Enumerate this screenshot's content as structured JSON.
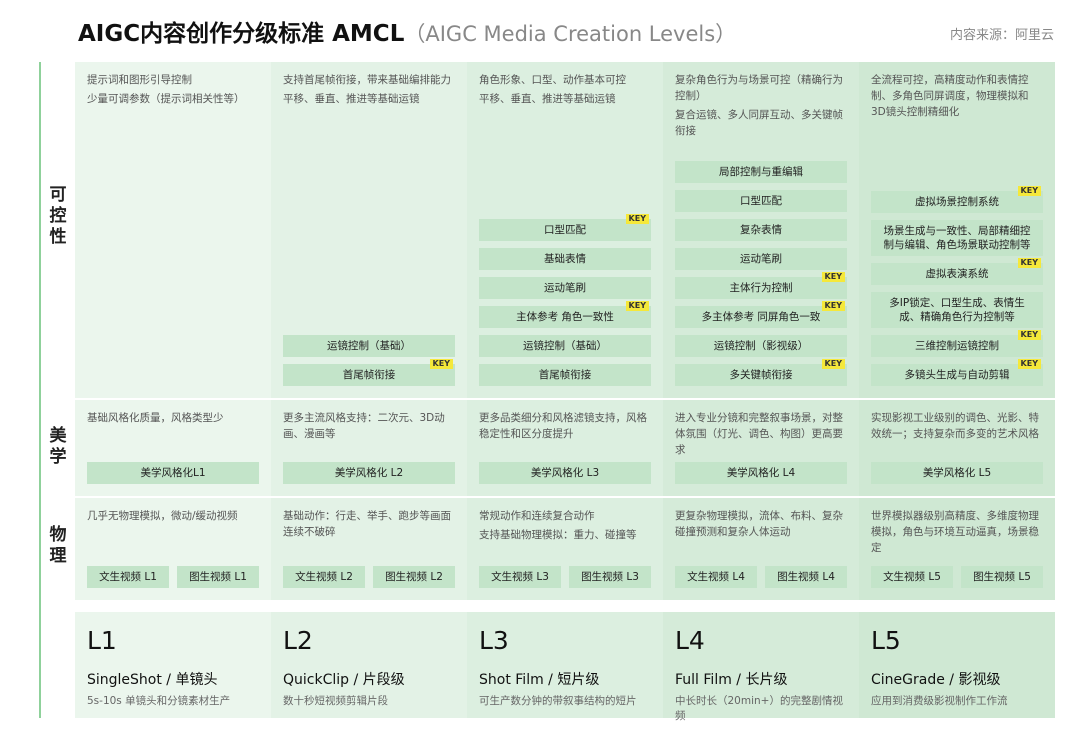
{
  "header": {
    "title": "AIGC内容创作分级标准 AMCL",
    "subtitle": "（AIGC Media Creation Levels）",
    "source": "内容来源：阿里云"
  },
  "row_labels": [
    "可控性",
    "美学",
    "物理"
  ],
  "key_label": "KEY",
  "levels": [
    {
      "control": {
        "description": [
          "提示词和图形引导控制",
          "少量可调参数（提示词相关性等）"
        ],
        "features": []
      },
      "aesthetics": {
        "description": [
          "基础风格化质量，风格类型少"
        ],
        "feature": "美学风格化L1"
      },
      "physics": {
        "description": [
          "几乎无物理模拟，微动/缓动视频"
        ],
        "features": [
          "文生视频 L1",
          "图生视频 L1"
        ]
      },
      "level": "L1",
      "name": "SingleShot / 单镜头",
      "summary": "5s-10s 单镜头和分镜素材生产"
    },
    {
      "control": {
        "description": [
          "支持首尾帧衔接，带来基础编排能力",
          "平移、垂直、推进等基础运镜"
        ],
        "features": [
          {
            "label": "运镜控制（基础）"
          },
          {
            "label": "首尾帧衔接",
            "key": true
          }
        ]
      },
      "aesthetics": {
        "description": [
          "更多主流风格支持：二次元、3D动画、漫画等"
        ],
        "feature": "美学风格化 L2"
      },
      "physics": {
        "description": [
          "基础动作：行走、举手、跑步等画面连续不破碎"
        ],
        "features": [
          "文生视频 L2",
          "图生视频 L2"
        ]
      },
      "level": "L2",
      "name": "QuickClip / 片段级",
      "summary": "数十秒短视频剪辑片段"
    },
    {
      "control": {
        "description": [
          "角色形象、口型、动作基本可控",
          "平移、垂直、推进等基础运镜"
        ],
        "features": [
          {
            "label": "口型匹配",
            "key": true
          },
          {
            "label": "基础表情"
          },
          {
            "label": "运动笔刷"
          },
          {
            "label": "主体参考 角色一致性",
            "key": true
          },
          {
            "label": "运镜控制（基础）"
          },
          {
            "label": "首尾帧衔接"
          }
        ]
      },
      "aesthetics": {
        "description": [
          "更多品类细分和风格滤镜支持，风格稳定性和区分度提升"
        ],
        "feature": "美学风格化 L3"
      },
      "physics": {
        "description": [
          "常规动作和连续复合动作",
          "支持基础物理模拟：重力、碰撞等"
        ],
        "features": [
          "文生视频 L3",
          "图生视频 L3"
        ]
      },
      "level": "L3",
      "name": "Shot Film / 短片级",
      "summary": "可生产数分钟的带叙事结构的短片"
    },
    {
      "control": {
        "description": [
          "复杂角色行为与场景可控（精确行为控制）",
          "复合运镜、多人同屏互动、多关键帧衔接"
        ],
        "features": [
          {
            "label": "局部控制与重编辑"
          },
          {
            "label": "口型匹配"
          },
          {
            "label": "复杂表情"
          },
          {
            "label": "运动笔刷"
          },
          {
            "label": "主体行为控制",
            "key": true
          },
          {
            "label": "多主体参考 同屏角色一致",
            "key": true
          },
          {
            "label": "运镜控制（影视级）"
          },
          {
            "label": "多关键帧衔接",
            "key": true
          }
        ]
      },
      "aesthetics": {
        "description": [
          "进入专业分镜和完整叙事场景，对整体氛围（灯光、调色、构图）更高要求"
        ],
        "feature": "美学风格化 L4"
      },
      "physics": {
        "description": [
          "更复杂物理模拟，流体、布料、复杂碰撞预测和复杂人体运动"
        ],
        "features": [
          "文生视频 L4",
          "图生视频 L4"
        ]
      },
      "level": "L4",
      "name": "Full Film / 长片级",
      "summary": "中长时长（20min+）的完整剧情视频"
    },
    {
      "control": {
        "description": [
          "全流程可控，高精度动作和表情控制、多角色同屏调度，物理模拟和3D镜头控制精细化"
        ],
        "features": [
          {
            "label": "虚拟场景控制系统",
            "key": true
          },
          {
            "label": "场景生成与一致性、局部精细控制与编辑、角色场景联动控制等"
          },
          {
            "label": "虚拟表演系统",
            "key": true
          },
          {
            "label": "多IP锁定、口型生成、表情生成、精确角色行为控制等"
          },
          {
            "label": "三维控制运镜控制",
            "key": true
          },
          {
            "label": "多镜头生成与自动剪辑",
            "key": true
          }
        ]
      },
      "aesthetics": {
        "description": [
          "实现影视工业级别的调色、光影、特效统一；支持复杂而多变的艺术风格"
        ],
        "feature": "美学风格化 L5"
      },
      "physics": {
        "description": [
          "世界模拟器级别高精度、多维度物理模拟，角色与环境互动逼真，场景稳定"
        ],
        "features": [
          "文生视频 L5",
          "图生视频 L5"
        ]
      },
      "level": "L5",
      "name": "CineGrade / 影视级",
      "summary": "应用到消费级影视制作工作流"
    }
  ]
}
